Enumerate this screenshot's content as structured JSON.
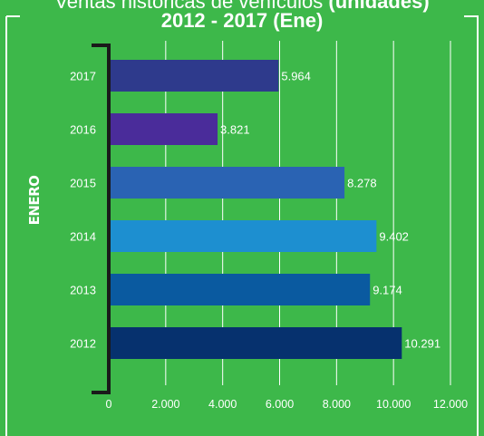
{
  "title": {
    "line1_regular": "Ventas históricas de vehículos",
    "line1_bold": "(unidades)",
    "line2": "2012 - 2017 (Ene)"
  },
  "chart_data": {
    "type": "bar",
    "orientation": "horizontal",
    "categories": [
      "2017",
      "2016",
      "2015",
      "2014",
      "2013",
      "2012"
    ],
    "values": [
      5964,
      3821,
      8278,
      9402,
      9174,
      10291
    ],
    "value_labels": [
      "5.964",
      "3.821",
      "8.278",
      "9.402",
      "9.174",
      "10.291"
    ],
    "bar_colors": [
      "#2e3a8c",
      "#4a2c9a",
      "#2a63b3",
      "#1d8fd0",
      "#0a5aa0",
      "#06316e"
    ],
    "ylabel": "ENERO",
    "xlim": [
      0,
      12000
    ],
    "xticks": [
      0,
      2000,
      4000,
      6000,
      8000,
      10000,
      12000
    ],
    "xtick_labels": [
      "0",
      "2.000",
      "4.000",
      "6.000",
      "8.000",
      "10.000",
      "12.000"
    ],
    "grid": "vertical",
    "background": "#3db84a",
    "text_color": "#ffffff",
    "axis_color": "#1a1a1a"
  }
}
